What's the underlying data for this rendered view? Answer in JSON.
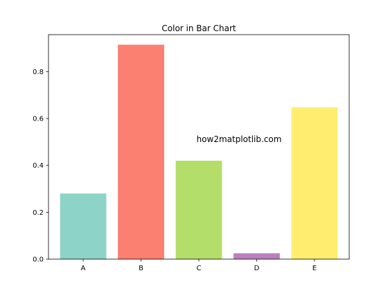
{
  "chart_data": {
    "type": "bar",
    "title": "Color in Bar Chart",
    "xlabel": "",
    "ylabel": "",
    "categories": [
      "A",
      "B",
      "C",
      "D",
      "E"
    ],
    "values": [
      0.28,
      0.915,
      0.42,
      0.025,
      0.648
    ],
    "colors": [
      "#8dd3c7",
      "#fb8072",
      "#b3de69",
      "#bc80bd",
      "#ffed6f"
    ],
    "ylim": [
      0,
      0.9578
    ],
    "yticks": [
      0.0,
      0.2,
      0.4,
      0.6,
      0.8
    ],
    "ytick_labels": [
      "0.0",
      "0.2",
      "0.4",
      "0.6",
      "0.8"
    ],
    "grid": false,
    "annotation": "how2matplotlib.com"
  }
}
